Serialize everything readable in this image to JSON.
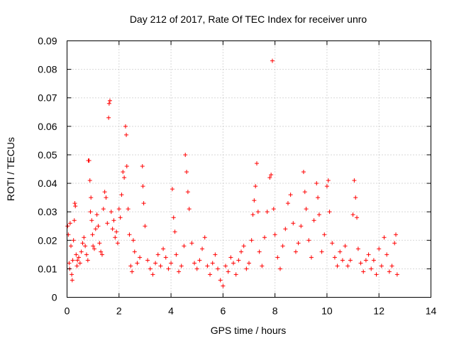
{
  "chart_data": {
    "type": "scatter",
    "title": "Day 212 of 2017, Rate Of TEC Index for receiver unro",
    "xlabel": "GPS time / hours",
    "ylabel": "ROTI / TECUs",
    "xlim": [
      0,
      14
    ],
    "ylim": [
      0,
      0.09
    ],
    "xticks": [
      0,
      2,
      4,
      6,
      8,
      10,
      12,
      14
    ],
    "xtick_labels": [
      "0",
      "2",
      "4",
      "6",
      "8",
      "10",
      "12",
      "14"
    ],
    "yticks": [
      0,
      0.01,
      0.02,
      0.03,
      0.04,
      0.05,
      0.06,
      0.07,
      0.08,
      0.09
    ],
    "ytick_labels": [
      "0",
      "0.01",
      "0.02",
      "0.03",
      "0.04",
      "0.05",
      "0.06",
      "0.07",
      "0.08",
      "0.09"
    ],
    "grid": true,
    "marker": "+",
    "color": "#ff0000",
    "series": [
      {
        "name": "ROTI",
        "points": [
          [
            0.02,
            0.025
          ],
          [
            0.05,
            0.022
          ],
          [
            0.08,
            0.012
          ],
          [
            0.1,
            0.01
          ],
          [
            0.12,
            0.026
          ],
          [
            0.15,
            0.018
          ],
          [
            0.18,
            0.008
          ],
          [
            0.2,
            0.006
          ],
          [
            0.22,
            0.013
          ],
          [
            0.25,
            0.02
          ],
          [
            0.28,
            0.027
          ],
          [
            0.3,
            0.033
          ],
          [
            0.32,
            0.032
          ],
          [
            0.35,
            0.015
          ],
          [
            0.38,
            0.011
          ],
          [
            0.4,
            0.013
          ],
          [
            0.45,
            0.014
          ],
          [
            0.5,
            0.012
          ],
          [
            0.55,
            0.016
          ],
          [
            0.6,
            0.019
          ],
          [
            0.65,
            0.021
          ],
          [
            0.7,
            0.018
          ],
          [
            0.75,
            0.015
          ],
          [
            0.8,
            0.013
          ],
          [
            0.82,
            0.048
          ],
          [
            0.85,
            0.048
          ],
          [
            0.88,
            0.041
          ],
          [
            0.9,
            0.03
          ],
          [
            0.92,
            0.035
          ],
          [
            0.95,
            0.027
          ],
          [
            0.98,
            0.022
          ],
          [
            1.0,
            0.018
          ],
          [
            1.05,
            0.017
          ],
          [
            1.1,
            0.024
          ],
          [
            1.15,
            0.029
          ],
          [
            1.2,
            0.025
          ],
          [
            1.25,
            0.019
          ],
          [
            1.3,
            0.016
          ],
          [
            1.35,
            0.015
          ],
          [
            1.4,
            0.031
          ],
          [
            1.45,
            0.037
          ],
          [
            1.5,
            0.035
          ],
          [
            1.55,
            0.026
          ],
          [
            1.6,
            0.063
          ],
          [
            1.62,
            0.068
          ],
          [
            1.65,
            0.069
          ],
          [
            1.7,
            0.03
          ],
          [
            1.75,
            0.024
          ],
          [
            1.8,
            0.027
          ],
          [
            1.85,
            0.021
          ],
          [
            1.9,
            0.023
          ],
          [
            1.95,
            0.019
          ],
          [
            2.0,
            0.031
          ],
          [
            2.05,
            0.028
          ],
          [
            2.1,
            0.036
          ],
          [
            2.15,
            0.044
          ],
          [
            2.2,
            0.042
          ],
          [
            2.25,
            0.06
          ],
          [
            2.28,
            0.057
          ],
          [
            2.3,
            0.046
          ],
          [
            2.35,
            0.031
          ],
          [
            2.4,
            0.022
          ],
          [
            2.45,
            0.011
          ],
          [
            2.5,
            0.009
          ],
          [
            2.55,
            0.02
          ],
          [
            2.6,
            0.016
          ],
          [
            2.7,
            0.012
          ],
          [
            2.8,
            0.014
          ],
          [
            2.9,
            0.046
          ],
          [
            2.92,
            0.039
          ],
          [
            2.95,
            0.033
          ],
          [
            3.0,
            0.025
          ],
          [
            3.1,
            0.013
          ],
          [
            3.2,
            0.01
          ],
          [
            3.3,
            0.008
          ],
          [
            3.4,
            0.012
          ],
          [
            3.5,
            0.015
          ],
          [
            3.6,
            0.011
          ],
          [
            3.7,
            0.017
          ],
          [
            3.8,
            0.014
          ],
          [
            3.9,
            0.01
          ],
          [
            4.0,
            0.012
          ],
          [
            4.05,
            0.038
          ],
          [
            4.1,
            0.028
          ],
          [
            4.15,
            0.023
          ],
          [
            4.2,
            0.015
          ],
          [
            4.3,
            0.009
          ],
          [
            4.4,
            0.011
          ],
          [
            4.5,
            0.018
          ],
          [
            4.55,
            0.05
          ],
          [
            4.6,
            0.044
          ],
          [
            4.65,
            0.037
          ],
          [
            4.7,
            0.031
          ],
          [
            4.8,
            0.019
          ],
          [
            4.9,
            0.012
          ],
          [
            5.0,
            0.01
          ],
          [
            5.1,
            0.013
          ],
          [
            5.2,
            0.017
          ],
          [
            5.3,
            0.021
          ],
          [
            5.4,
            0.011
          ],
          [
            5.5,
            0.008
          ],
          [
            5.6,
            0.012
          ],
          [
            5.7,
            0.015
          ],
          [
            5.8,
            0.01
          ],
          [
            5.9,
            0.006
          ],
          [
            6.0,
            0.004
          ],
          [
            6.1,
            0.011
          ],
          [
            6.2,
            0.009
          ],
          [
            6.3,
            0.014
          ],
          [
            6.4,
            0.012
          ],
          [
            6.5,
            0.008
          ],
          [
            6.6,
            0.013
          ],
          [
            6.7,
            0.016
          ],
          [
            6.8,
            0.018
          ],
          [
            6.9,
            0.01
          ],
          [
            7.0,
            0.012
          ],
          [
            7.1,
            0.02
          ],
          [
            7.15,
            0.029
          ],
          [
            7.2,
            0.034
          ],
          [
            7.25,
            0.039
          ],
          [
            7.3,
            0.047
          ],
          [
            7.35,
            0.03
          ],
          [
            7.4,
            0.016
          ],
          [
            7.5,
            0.011
          ],
          [
            7.6,
            0.021
          ],
          [
            7.7,
            0.03
          ],
          [
            7.8,
            0.042
          ],
          [
            7.85,
            0.043
          ],
          [
            7.9,
            0.083
          ],
          [
            7.95,
            0.031
          ],
          [
            8.0,
            0.022
          ],
          [
            8.1,
            0.014
          ],
          [
            8.2,
            0.01
          ],
          [
            8.3,
            0.018
          ],
          [
            8.4,
            0.024
          ],
          [
            8.5,
            0.033
          ],
          [
            8.6,
            0.036
          ],
          [
            8.7,
            0.026
          ],
          [
            8.8,
            0.016
          ],
          [
            8.9,
            0.019
          ],
          [
            9.0,
            0.025
          ],
          [
            9.1,
            0.044
          ],
          [
            9.15,
            0.037
          ],
          [
            9.2,
            0.031
          ],
          [
            9.3,
            0.02
          ],
          [
            9.4,
            0.014
          ],
          [
            9.5,
            0.027
          ],
          [
            9.6,
            0.04
          ],
          [
            9.65,
            0.035
          ],
          [
            9.7,
            0.029
          ],
          [
            9.8,
            0.016
          ],
          [
            9.9,
            0.022
          ],
          [
            10.0,
            0.039
          ],
          [
            10.05,
            0.041
          ],
          [
            10.1,
            0.03
          ],
          [
            10.2,
            0.019
          ],
          [
            10.3,
            0.014
          ],
          [
            10.4,
            0.011
          ],
          [
            10.5,
            0.016
          ],
          [
            10.6,
            0.013
          ],
          [
            10.7,
            0.018
          ],
          [
            10.8,
            0.011
          ],
          [
            10.9,
            0.013
          ],
          [
            11.0,
            0.029
          ],
          [
            11.05,
            0.041
          ],
          [
            11.1,
            0.035
          ],
          [
            11.15,
            0.028
          ],
          [
            11.2,
            0.017
          ],
          [
            11.3,
            0.012
          ],
          [
            11.4,
            0.009
          ],
          [
            11.5,
            0.013
          ],
          [
            11.6,
            0.015
          ],
          [
            11.7,
            0.01
          ],
          [
            11.8,
            0.013
          ],
          [
            11.9,
            0.008
          ],
          [
            12.0,
            0.017
          ],
          [
            12.1,
            0.011
          ],
          [
            12.2,
            0.021
          ],
          [
            12.3,
            0.015
          ],
          [
            12.4,
            0.009
          ],
          [
            12.5,
            0.011
          ],
          [
            12.6,
            0.019
          ],
          [
            12.65,
            0.022
          ],
          [
            12.7,
            0.008
          ]
        ]
      }
    ]
  }
}
